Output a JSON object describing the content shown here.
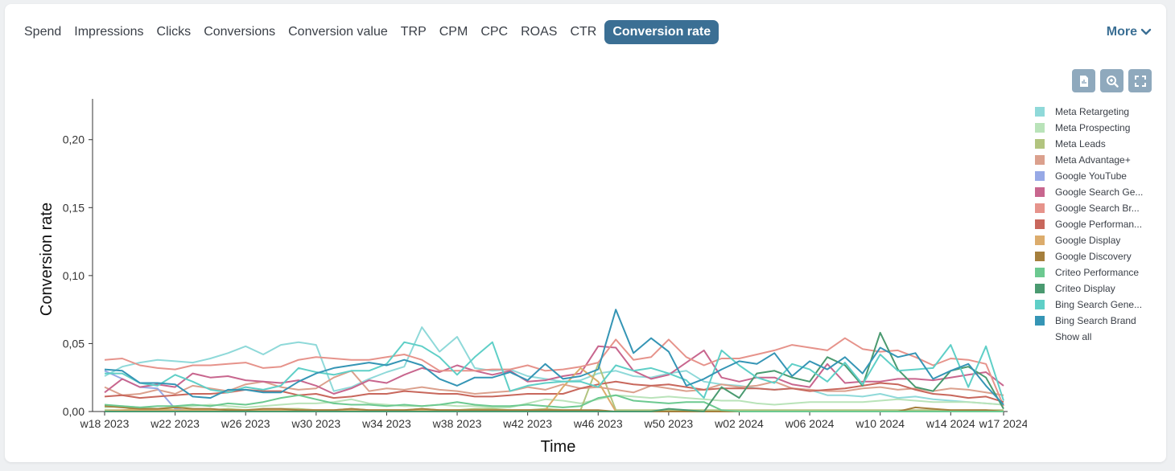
{
  "tabs": [
    {
      "label": "Spend",
      "active": false
    },
    {
      "label": "Impressions",
      "active": false
    },
    {
      "label": "Clicks",
      "active": false
    },
    {
      "label": "Conversions",
      "active": false
    },
    {
      "label": "Conversion value",
      "active": false
    },
    {
      "label": "TRP",
      "active": false
    },
    {
      "label": "CPM",
      "active": false
    },
    {
      "label": "CPC",
      "active": false
    },
    {
      "label": "ROAS",
      "active": false
    },
    {
      "label": "CTR",
      "active": false
    },
    {
      "label": "Conversion rate",
      "active": true
    }
  ],
  "more_label": "More",
  "toolbar": {
    "icons": [
      "export-icon",
      "zoom-icon",
      "fullscreen-icon"
    ]
  },
  "legend": {
    "items": [
      {
        "label": "Meta Retargeting",
        "color": "#8fd9d9"
      },
      {
        "label": "Meta Prospecting",
        "color": "#b9e3b9"
      },
      {
        "label": "Meta Leads",
        "color": "#b2c47f"
      },
      {
        "label": "Meta Advantage+",
        "color": "#dba08d"
      },
      {
        "label": "Google YouTube",
        "color": "#97a9e6"
      },
      {
        "label": "Google Search Ge...",
        "color": "#c8668e"
      },
      {
        "label": "Google Search Br...",
        "color": "#e6938b"
      },
      {
        "label": "Google Performan...",
        "color": "#c8675c"
      },
      {
        "label": "Google Display",
        "color": "#dcac6c"
      },
      {
        "label": "Google Discovery",
        "color": "#a57f3d"
      },
      {
        "label": "Criteo Performance",
        "color": "#6cc990"
      },
      {
        "label": "Criteo Display",
        "color": "#4a9a70"
      },
      {
        "label": "Bing Search Gene...",
        "color": "#5fcfc7"
      },
      {
        "label": "Bing Search Brand",
        "color": "#3595b5"
      }
    ],
    "show_all": "Show all"
  },
  "chart_data": {
    "type": "line",
    "xlabel": "Time",
    "ylabel": "Conversion rate",
    "ylim": [
      0,
      0.23
    ],
    "y_ticks": [
      {
        "value": 0.0,
        "label": "0,00"
      },
      {
        "value": 0.05,
        "label": "0,05"
      },
      {
        "value": 0.1,
        "label": "0,10"
      },
      {
        "value": 0.15,
        "label": "0,15"
      },
      {
        "value": 0.2,
        "label": "0,20"
      }
    ],
    "x_ticks": [
      "w18 2023",
      "w22 2023",
      "w26 2023",
      "w30 2023",
      "w34 2023",
      "w38 2023",
      "w42 2023",
      "w46 2023",
      "w50 2023",
      "w02 2024",
      "w06 2024",
      "w10 2024",
      "w14 2024",
      "w17 2024"
    ],
    "x_tick_index": [
      0,
      4,
      8,
      12,
      16,
      20,
      24,
      28,
      32,
      36,
      40,
      44,
      48,
      51
    ],
    "legend_position": "right",
    "grid": false,
    "series": [
      {
        "name": "Meta Retargeting",
        "color": "#8fd9d9",
        "values": [
          0.026,
          0.033,
          0.036,
          0.038,
          0.037,
          0.036,
          0.039,
          0.043,
          0.048,
          0.042,
          0.049,
          0.051,
          0.049,
          0.015,
          0.018,
          0.024,
          0.029,
          0.033,
          0.062,
          0.044,
          0.055,
          0.032,
          0.03,
          0.031,
          0.026,
          0.024,
          0.022,
          0.023,
          0.028,
          0.03,
          0.026,
          0.025,
          0.028,
          0.03,
          0.022,
          0.02,
          0.019,
          0.017,
          0.016,
          0.017,
          0.016,
          0.012,
          0.012,
          0.011,
          0.013,
          0.01,
          0.011,
          0.009,
          0.008,
          0.007,
          0.006,
          0.005
        ]
      },
      {
        "name": "Meta Prospecting",
        "color": "#b9e3b9",
        "values": [
          0.003,
          0.004,
          0.003,
          0.002,
          0.003,
          0.004,
          0.005,
          0.004,
          0.003,
          0.004,
          0.005,
          0.006,
          0.006,
          0.007,
          0.009,
          0.006,
          0.005,
          0.004,
          0.004,
          0.005,
          0.004,
          0.004,
          0.003,
          0.003,
          0.006,
          0.009,
          0.008,
          0.006,
          0.009,
          0.012,
          0.011,
          0.01,
          0.011,
          0.01,
          0.009,
          0.008,
          0.008,
          0.006,
          0.005,
          0.006,
          0.007,
          0.007,
          0.007,
          0.007,
          0.008,
          0.009,
          0.008,
          0.007,
          0.007,
          0.007,
          0.006,
          0.005
        ]
      },
      {
        "name": "Meta Leads",
        "color": "#b2c47f",
        "values": [
          0.001,
          0.001,
          0.002,
          0.002,
          0.001,
          0.001,
          0.001,
          0.002,
          0.001,
          0.001,
          0.002,
          0.002,
          0.001,
          0.001,
          0.002,
          0.001,
          0.001,
          0.001,
          0.002,
          0.001,
          0.001,
          0.002,
          0.002,
          0.001,
          0.001,
          0.002,
          0.001,
          0.001,
          0.035,
          0.001,
          0.001,
          0.001,
          0.001,
          0.001,
          0.001,
          0.001,
          0.001,
          0.001,
          0.001,
          0.001,
          0.001,
          0.001,
          0.001,
          0.001,
          0.001,
          0.001,
          0.001,
          0.001,
          0.001,
          0.001,
          0.001,
          0.001
        ]
      },
      {
        "name": "Meta Advantage+",
        "color": "#dba08d",
        "values": [
          0.018,
          0.012,
          0.013,
          0.016,
          0.013,
          0.019,
          0.017,
          0.015,
          0.02,
          0.022,
          0.018,
          0.016,
          0.017,
          0.025,
          0.03,
          0.015,
          0.017,
          0.016,
          0.018,
          0.016,
          0.015,
          0.013,
          0.014,
          0.015,
          0.018,
          0.016,
          0.02,
          0.017,
          0.018,
          0.016,
          0.014,
          0.019,
          0.017,
          0.015,
          0.016,
          0.02,
          0.018,
          0.019,
          0.022,
          0.017,
          0.016,
          0.015,
          0.015,
          0.017,
          0.018,
          0.016,
          0.017,
          0.015,
          0.017,
          0.016,
          0.014,
          0.012
        ]
      },
      {
        "name": "Google YouTube",
        "color": "#97a9e6",
        "values": [
          0.03,
          0.024,
          0.018,
          0.017,
          0.002,
          0.0,
          0.0,
          0.0,
          0.0,
          0.0,
          0.0,
          0.0,
          0.0,
          0.0,
          0.0,
          0.0,
          0.0,
          0.0,
          0.0,
          0.0,
          0.0,
          0.0,
          0.0,
          0.0,
          0.0,
          0.0,
          0.0,
          0.0,
          0.0,
          0.0,
          0.0,
          0.0,
          0.0,
          0.0,
          0.0,
          0.0,
          0.0,
          0.0,
          0.0,
          0.0,
          0.0,
          0.0,
          0.0,
          0.0,
          0.0,
          0.0,
          0.0,
          0.0,
          0.0,
          0.0,
          0.0,
          0.0
        ]
      },
      {
        "name": "Google Search Ge...",
        "color": "#c8668e",
        "values": [
          0.014,
          0.024,
          0.018,
          0.02,
          0.018,
          0.028,
          0.025,
          0.026,
          0.023,
          0.022,
          0.021,
          0.023,
          0.019,
          0.013,
          0.017,
          0.023,
          0.021,
          0.027,
          0.032,
          0.029,
          0.034,
          0.03,
          0.027,
          0.03,
          0.022,
          0.023,
          0.026,
          0.028,
          0.048,
          0.047,
          0.03,
          0.024,
          0.027,
          0.036,
          0.045,
          0.025,
          0.022,
          0.025,
          0.025,
          0.02,
          0.018,
          0.035,
          0.021,
          0.022,
          0.022,
          0.024,
          0.024,
          0.023,
          0.025,
          0.027,
          0.029,
          0.019
        ]
      },
      {
        "name": "Google Search Br...",
        "color": "#e6938b",
        "values": [
          0.038,
          0.039,
          0.034,
          0.032,
          0.031,
          0.034,
          0.034,
          0.035,
          0.036,
          0.032,
          0.033,
          0.038,
          0.04,
          0.039,
          0.038,
          0.038,
          0.04,
          0.042,
          0.038,
          0.03,
          0.03,
          0.03,
          0.031,
          0.031,
          0.034,
          0.03,
          0.031,
          0.033,
          0.036,
          0.053,
          0.038,
          0.04,
          0.053,
          0.04,
          0.034,
          0.039,
          0.039,
          0.042,
          0.045,
          0.049,
          0.047,
          0.045,
          0.054,
          0.046,
          0.044,
          0.045,
          0.04,
          0.034,
          0.039,
          0.038,
          0.035,
          0.004
        ]
      },
      {
        "name": "Google Performan...",
        "color": "#c8675c",
        "values": [
          0.011,
          0.012,
          0.01,
          0.011,
          0.012,
          0.013,
          0.013,
          0.014,
          0.016,
          0.015,
          0.015,
          0.012,
          0.013,
          0.01,
          0.011,
          0.013,
          0.013,
          0.015,
          0.014,
          0.013,
          0.013,
          0.011,
          0.011,
          0.012,
          0.013,
          0.013,
          0.013,
          0.017,
          0.02,
          0.022,
          0.02,
          0.019,
          0.02,
          0.018,
          0.016,
          0.017,
          0.017,
          0.017,
          0.016,
          0.017,
          0.015,
          0.016,
          0.017,
          0.019,
          0.021,
          0.02,
          0.016,
          0.013,
          0.012,
          0.01,
          0.011,
          0.007
        ]
      },
      {
        "name": "Google Display",
        "color": "#dcac6c",
        "values": [
          0.0,
          0.001,
          0.001,
          0.001,
          0.001,
          0.001,
          0.001,
          0.001,
          0.001,
          0.001,
          0.001,
          0.001,
          0.001,
          0.001,
          0.001,
          0.001,
          0.001,
          0.001,
          0.001,
          0.001,
          0.001,
          0.001,
          0.001,
          0.001,
          0.001,
          0.001,
          0.018,
          0.032,
          0.022,
          0.0,
          0.0,
          0.0,
          0.0,
          0.0,
          0.0,
          0.0,
          0.0,
          0.0,
          0.0,
          0.0,
          0.0,
          0.0,
          0.0,
          0.0,
          0.0,
          0.0,
          0.0,
          0.0,
          0.0,
          0.0,
          0.0,
          0.0
        ]
      },
      {
        "name": "Google Discovery",
        "color": "#a57f3d",
        "values": [
          0.004,
          0.003,
          0.002,
          0.002,
          0.003,
          0.002,
          0.002,
          0.001,
          0.001,
          0.002,
          0.002,
          0.001,
          0.001,
          0.001,
          0.002,
          0.001,
          0.001,
          0.001,
          0.002,
          0.001,
          0.001,
          0.001,
          0.001,
          0.001,
          0.001,
          0.001,
          0.001,
          0.001,
          0.001,
          0.0,
          0.0,
          0.0,
          0.0,
          0.0,
          0.0,
          0.0,
          0.0,
          0.0,
          0.0,
          0.0,
          0.0,
          0.0,
          0.0,
          0.0,
          0.0,
          0.0,
          0.003,
          0.002,
          0.001,
          0.001,
          0.001,
          0.0
        ]
      },
      {
        "name": "Criteo Performance",
        "color": "#6cc990",
        "values": [
          0.005,
          0.004,
          0.003,
          0.004,
          0.004,
          0.005,
          0.004,
          0.006,
          0.005,
          0.007,
          0.01,
          0.012,
          0.009,
          0.006,
          0.005,
          0.005,
          0.004,
          0.005,
          0.004,
          0.005,
          0.007,
          0.005,
          0.004,
          0.004,
          0.005,
          0.004,
          0.003,
          0.004,
          0.01,
          0.012,
          0.008,
          0.007,
          0.006,
          0.007,
          0.007,
          0.001,
          0.0,
          0.0,
          0.0,
          0.0,
          0.0,
          0.0,
          0.0,
          0.0,
          0.0,
          0.0,
          0.0,
          0.0,
          0.0,
          0.0,
          0.0,
          0.0
        ]
      },
      {
        "name": "Criteo Display",
        "color": "#4a9a70",
        "values": [
          0.0,
          0.0,
          0.0,
          0.0,
          0.0,
          0.0,
          0.0,
          0.0,
          0.0,
          0.0,
          0.0,
          0.0,
          0.0,
          0.0,
          0.0,
          0.0,
          0.0,
          0.0,
          0.0,
          0.0,
          0.0,
          0.0,
          0.0,
          0.0,
          0.0,
          0.0,
          0.0,
          0.0,
          0.0,
          0.0,
          0.0,
          0.0,
          0.002,
          0.001,
          0.0,
          0.018,
          0.01,
          0.028,
          0.03,
          0.025,
          0.022,
          0.04,
          0.034,
          0.019,
          0.058,
          0.031,
          0.018,
          0.015,
          0.03,
          0.033,
          0.025,
          0.002
        ]
      },
      {
        "name": "Bing Search Gene...",
        "color": "#5fcfc7",
        "values": [
          0.028,
          0.028,
          0.021,
          0.019,
          0.027,
          0.022,
          0.016,
          0.014,
          0.018,
          0.016,
          0.019,
          0.032,
          0.029,
          0.027,
          0.03,
          0.03,
          0.035,
          0.051,
          0.048,
          0.04,
          0.027,
          0.04,
          0.051,
          0.015,
          0.019,
          0.021,
          0.022,
          0.022,
          0.018,
          0.034,
          0.03,
          0.032,
          0.028,
          0.023,
          0.01,
          0.045,
          0.034,
          0.025,
          0.021,
          0.035,
          0.031,
          0.022,
          0.036,
          0.02,
          0.042,
          0.03,
          0.031,
          0.032,
          0.049,
          0.018,
          0.048,
          0.008
        ]
      },
      {
        "name": "Bing Search Brand",
        "color": "#3595b5",
        "values": [
          0.031,
          0.03,
          0.021,
          0.021,
          0.02,
          0.011,
          0.01,
          0.016,
          0.016,
          0.014,
          0.014,
          0.022,
          0.028,
          0.032,
          0.034,
          0.036,
          0.034,
          0.038,
          0.034,
          0.024,
          0.019,
          0.025,
          0.025,
          0.029,
          0.023,
          0.035,
          0.024,
          0.026,
          0.031,
          0.075,
          0.043,
          0.054,
          0.044,
          0.019,
          0.024,
          0.031,
          0.037,
          0.035,
          0.043,
          0.026,
          0.037,
          0.031,
          0.04,
          0.028,
          0.047,
          0.04,
          0.043,
          0.024,
          0.03,
          0.035,
          0.019,
          0.005
        ]
      }
    ]
  }
}
